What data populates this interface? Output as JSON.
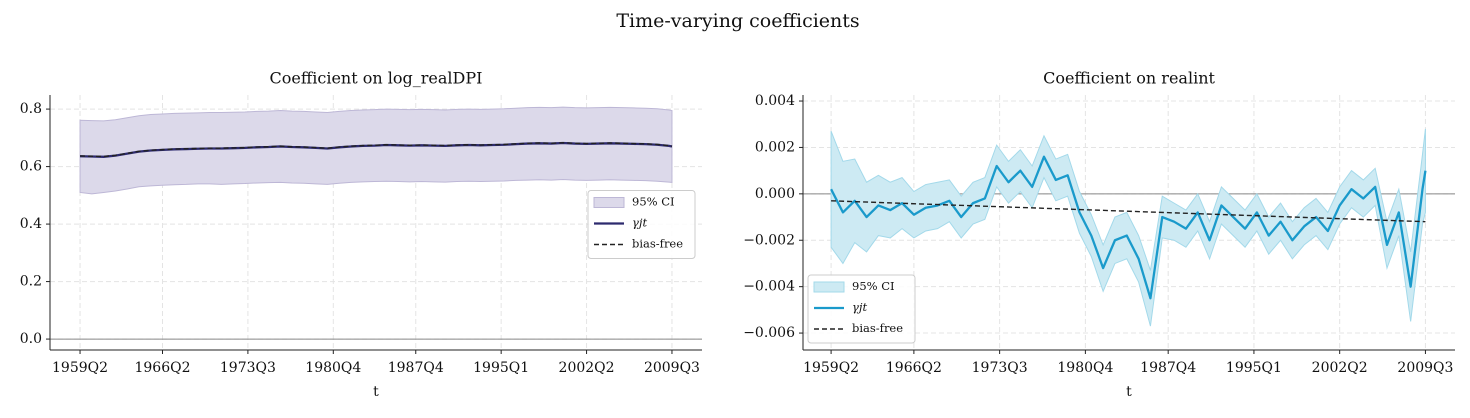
{
  "title": "Time-varying coefficients",
  "chart_data": [
    {
      "type": "line",
      "title": "Coefficient on log_realDPI",
      "x_label": "t",
      "xlim": [
        -10.2,
        211.2
      ],
      "ylim": [
        -0.038,
        0.849
      ],
      "xticks": [
        {
          "value": 0,
          "label": "1959Q2"
        },
        {
          "value": 28,
          "label": "1966Q2"
        },
        {
          "value": 57,
          "label": "1973Q3"
        },
        {
          "value": 86,
          "label": "1980Q4"
        },
        {
          "value": 114,
          "label": "1987Q4"
        },
        {
          "value": 143,
          "label": "1995Q1"
        },
        {
          "value": 172,
          "label": "2002Q2"
        },
        {
          "value": 201,
          "label": "2009Q3"
        }
      ],
      "yticks": [
        {
          "value": 0,
          "label": "0.0"
        },
        {
          "value": 0.2,
          "label": "0.2"
        },
        {
          "value": 0.4,
          "label": "0.4"
        },
        {
          "value": 0.6,
          "label": "0.6"
        },
        {
          "value": 0.8,
          "label": "0.8"
        }
      ],
      "grid": true,
      "hline": 0,
      "legend": "center right",
      "x": [
        0,
        4,
        8,
        12,
        16,
        20,
        24,
        28,
        32,
        36,
        40,
        44,
        48,
        52,
        56,
        60,
        64,
        68,
        72,
        76,
        80,
        84,
        88,
        92,
        96,
        100,
        104,
        108,
        112,
        116,
        120,
        124,
        128,
        132,
        136,
        140,
        144,
        148,
        152,
        156,
        160,
        164,
        168,
        172,
        176,
        180,
        184,
        188,
        192,
        196,
        200,
        201
      ],
      "series": [
        {
          "name": "95% CI",
          "style": "band",
          "color": "#dcd9ea",
          "edge": "#bdb7d6",
          "lower": [
            0.51,
            0.505,
            0.51,
            0.515,
            0.522,
            0.53,
            0.533,
            0.535,
            0.537,
            0.538,
            0.54,
            0.54,
            0.538,
            0.54,
            0.541,
            0.543,
            0.544,
            0.545,
            0.543,
            0.542,
            0.54,
            0.538,
            0.542,
            0.545,
            0.547,
            0.548,
            0.549,
            0.548,
            0.547,
            0.548,
            0.547,
            0.546,
            0.548,
            0.549,
            0.548,
            0.549,
            0.55,
            0.552,
            0.553,
            0.554,
            0.553,
            0.555,
            0.553,
            0.552,
            0.553,
            0.554,
            0.553,
            0.552,
            0.551,
            0.549,
            0.546,
            0.545
          ],
          "upper": [
            0.761,
            0.76,
            0.759,
            0.763,
            0.77,
            0.777,
            0.781,
            0.783,
            0.785,
            0.786,
            0.787,
            0.788,
            0.788,
            0.789,
            0.79,
            0.792,
            0.793,
            0.795,
            0.793,
            0.792,
            0.79,
            0.788,
            0.792,
            0.795,
            0.797,
            0.798,
            0.8,
            0.799,
            0.798,
            0.799,
            0.798,
            0.797,
            0.799,
            0.8,
            0.799,
            0.8,
            0.801,
            0.803,
            0.805,
            0.806,
            0.805,
            0.807,
            0.805,
            0.804,
            0.805,
            0.806,
            0.805,
            0.804,
            0.803,
            0.801,
            0.797,
            0.795
          ]
        },
        {
          "name": "γjt",
          "style": "solid",
          "color": "#2d2a6e",
          "values": [
            0.636,
            0.635,
            0.634,
            0.638,
            0.645,
            0.652,
            0.656,
            0.658,
            0.66,
            0.661,
            0.662,
            0.663,
            0.663,
            0.664,
            0.665,
            0.667,
            0.668,
            0.67,
            0.668,
            0.667,
            0.665,
            0.663,
            0.667,
            0.67,
            0.672,
            0.673,
            0.675,
            0.674,
            0.673,
            0.674,
            0.673,
            0.672,
            0.674,
            0.675,
            0.674,
            0.675,
            0.676,
            0.678,
            0.68,
            0.681,
            0.68,
            0.682,
            0.68,
            0.679,
            0.68,
            0.681,
            0.68,
            0.679,
            0.678,
            0.676,
            0.672,
            0.67
          ]
        },
        {
          "name": "bias-free",
          "style": "dashed",
          "color": "#222222",
          "values": [
            0.637,
            0.636,
            0.635,
            0.639,
            0.646,
            0.653,
            0.657,
            0.659,
            0.661,
            0.662,
            0.663,
            0.664,
            0.664,
            0.665,
            0.666,
            0.668,
            0.669,
            0.671,
            0.669,
            0.668,
            0.666,
            0.664,
            0.668,
            0.671,
            0.673,
            0.674,
            0.676,
            0.675,
            0.674,
            0.675,
            0.674,
            0.673,
            0.675,
            0.676,
            0.675,
            0.676,
            0.677,
            0.679,
            0.681,
            0.682,
            0.681,
            0.683,
            0.681,
            0.68,
            0.681,
            0.682,
            0.681,
            0.68,
            0.679,
            0.677,
            0.673,
            0.671
          ]
        }
      ]
    },
    {
      "type": "line",
      "title": "Coefficient on realint",
      "x_label": "t",
      "xlim": [
        -9.5,
        211
      ],
      "ylim": [
        -0.00673,
        0.00426
      ],
      "xticks": [
        {
          "value": 0,
          "label": "1959Q2"
        },
        {
          "value": 28,
          "label": "1966Q2"
        },
        {
          "value": 57,
          "label": "1973Q3"
        },
        {
          "value": 86,
          "label": "1980Q4"
        },
        {
          "value": 114,
          "label": "1987Q4"
        },
        {
          "value": 143,
          "label": "1995Q1"
        },
        {
          "value": 172,
          "label": "2002Q2"
        },
        {
          "value": 201,
          "label": "2009Q3"
        }
      ],
      "yticks": [
        {
          "value": -0.006,
          "label": "−0.006"
        },
        {
          "value": -0.004,
          "label": "−0.004"
        },
        {
          "value": -0.002,
          "label": "−0.002"
        },
        {
          "value": 0,
          "label": "0.000"
        },
        {
          "value": 0.002,
          "label": "0.002"
        },
        {
          "value": 0.004,
          "label": "0.004"
        }
      ],
      "grid": true,
      "hline": 0,
      "legend": "lower left",
      "x": [
        0,
        4,
        8,
        12,
        16,
        20,
        24,
        28,
        32,
        36,
        40,
        44,
        48,
        52,
        56,
        60,
        64,
        68,
        72,
        76,
        80,
        84,
        88,
        92,
        96,
        100,
        104,
        108,
        112,
        116,
        120,
        124,
        128,
        132,
        136,
        140,
        144,
        148,
        152,
        156,
        160,
        164,
        168,
        172,
        176,
        180,
        184,
        188,
        192,
        196,
        200,
        201
      ],
      "series": [
        {
          "name": "95% CI",
          "style": "band",
          "color": "#cdeaf3",
          "edge": "#a3d9ea",
          "lower": [
            -0.0023,
            -0.003,
            -0.0021,
            -0.0025,
            -0.0018,
            -0.0019,
            -0.0015,
            -0.0019,
            -0.0016,
            -0.0015,
            -0.0012,
            -0.0019,
            -0.0013,
            -0.0011,
            0.0003,
            -0.0004,
            0.0001,
            -0.0006,
            0.0007,
            -0.0003,
            -0.0001,
            -0.0017,
            -0.0027,
            -0.0042,
            -0.003,
            -0.0028,
            -0.0038,
            -0.0057,
            -0.0019,
            -0.002,
            -0.0023,
            -0.0016,
            -0.0028,
            -0.0013,
            -0.0018,
            -0.0023,
            -0.0016,
            -0.0026,
            -0.002,
            -0.0028,
            -0.0022,
            -0.0018,
            -0.0024,
            -0.0013,
            -0.0006,
            -0.001,
            -0.0005,
            -0.0032,
            -0.0018,
            -0.0055,
            -0.0013,
            -0.0008
          ],
          "upper": [
            0.0027,
            0.0014,
            0.0015,
            0.0005,
            0.0008,
            0.0005,
            0.0007,
            0.0001,
            0.0004,
            0.0005,
            0.0006,
            -0.0001,
            0.0005,
            0.0007,
            0.0021,
            0.0014,
            0.0019,
            0.0012,
            0.0025,
            0.0015,
            0.0017,
            0.0001,
            -0.0009,
            -0.0022,
            -0.001,
            -0.0008,
            -0.0018,
            -0.0033,
            -0.0001,
            -0.0004,
            -0.0007,
            0.0,
            -0.0012,
            0.0003,
            -0.0002,
            -0.0007,
            0.0,
            -0.001,
            -0.0004,
            -0.0012,
            -0.0006,
            -0.0002,
            -0.0008,
            0.0003,
            0.001,
            0.0006,
            0.0011,
            -0.0012,
            0.0002,
            -0.0025,
            0.0017,
            0.0028
          ]
        },
        {
          "name": "γjt",
          "style": "solid",
          "color": "#1a9acb",
          "values": [
            0.0002,
            -0.0008,
            -0.0003,
            -0.001,
            -0.0005,
            -0.0007,
            -0.0004,
            -0.0009,
            -0.0006,
            -0.0005,
            -0.0003,
            -0.001,
            -0.0004,
            -0.0002,
            0.0012,
            0.0005,
            0.001,
            0.0003,
            0.0016,
            0.0006,
            0.0008,
            -0.0008,
            -0.0018,
            -0.0032,
            -0.002,
            -0.0018,
            -0.0028,
            -0.0045,
            -0.001,
            -0.0012,
            -0.0015,
            -0.0008,
            -0.002,
            -0.0005,
            -0.001,
            -0.0015,
            -0.0008,
            -0.0018,
            -0.0012,
            -0.002,
            -0.0014,
            -0.001,
            -0.0016,
            -0.0005,
            0.0002,
            -0.0002,
            0.0003,
            -0.0022,
            -0.0008,
            -0.004,
            0.0002,
            0.001
          ]
        },
        {
          "name": "bias-free",
          "style": "dashed",
          "color": "#222222",
          "x": [
            0,
            201
          ],
          "values": [
            -0.0003,
            -0.0012
          ]
        }
      ]
    }
  ]
}
